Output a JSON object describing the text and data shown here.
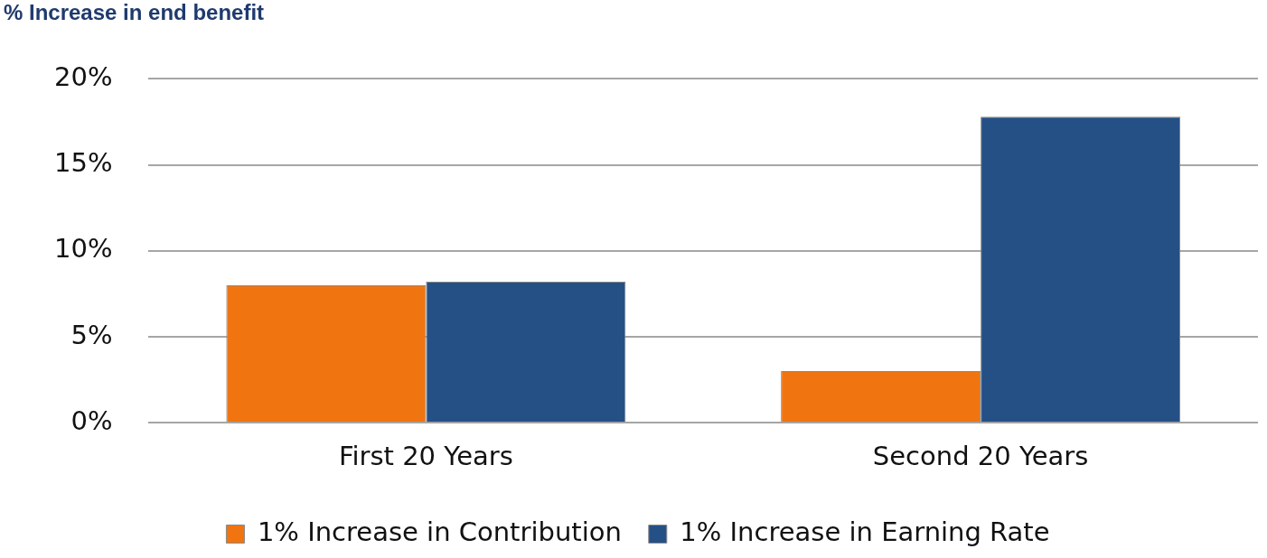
{
  "chart_data": {
    "type": "bar",
    "title": "% Increase in end benefit",
    "categories": [
      "First 20 Years",
      "Second 20 Years"
    ],
    "series": [
      {
        "name": "1% Increase in Contribution",
        "color": "#f07511",
        "values": [
          8.0,
          3.0
        ]
      },
      {
        "name": "1% Increase in Earning Rate",
        "color": "#255086",
        "values": [
          8.2,
          17.8
        ]
      }
    ],
    "ylim": [
      0,
      20
    ],
    "yticks": [
      {
        "value": 0,
        "label": "0%"
      },
      {
        "value": 5,
        "label": "5%"
      },
      {
        "value": 10,
        "label": "10%"
      },
      {
        "value": 15,
        "label": "15%"
      },
      {
        "value": 20,
        "label": "20%"
      }
    ],
    "grid": "y",
    "legend": "bottom"
  }
}
